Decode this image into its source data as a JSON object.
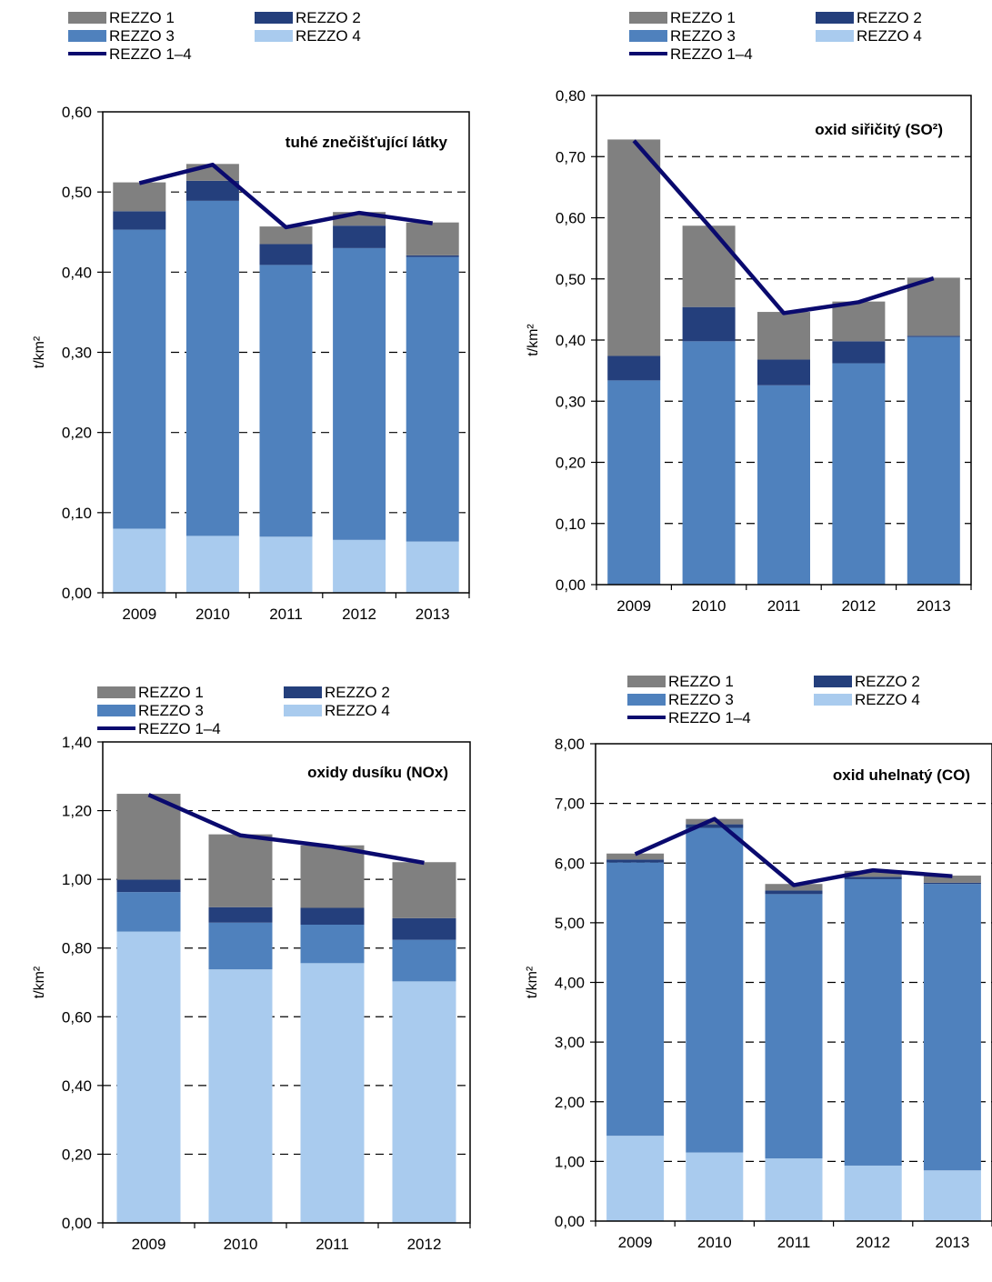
{
  "colors": {
    "REZZO 1": "#808080",
    "REZZO 2": "#243f7c",
    "REZZO 3": "#4f81bd",
    "REZZO 4": "#a9cbee",
    "REZZO 1–4": "#0a0a6e"
  },
  "chart_data": [
    {
      "type": "bar",
      "stacked": true,
      "title": "tuhé znečišťující látky",
      "ylabel": "t/km²",
      "ylim": [
        0,
        0.6
      ],
      "yticks": [
        "0,00",
        "0,10",
        "0,20",
        "0,30",
        "0,40",
        "0,50",
        "0,60"
      ],
      "categories": [
        "2009",
        "2010",
        "2011",
        "2012",
        "2013"
      ],
      "legend": [
        "REZZO 1",
        "REZZO 2",
        "REZZO 3",
        "REZZO 4",
        "REZZO 1–4"
      ],
      "legend_placement": "top",
      "grid": "dashed horizontal",
      "series": [
        {
          "name": "REZZO 4",
          "values": [
            0.08,
            0.071,
            0.07,
            0.066,
            0.064
          ]
        },
        {
          "name": "REZZO 3",
          "values": [
            0.373,
            0.418,
            0.339,
            0.364,
            0.355
          ]
        },
        {
          "name": "REZZO 2",
          "values": [
            0.023,
            0.025,
            0.026,
            0.028,
            0.002
          ]
        },
        {
          "name": "REZZO 1",
          "values": [
            0.036,
            0.021,
            0.022,
            0.017,
            0.041
          ]
        }
      ],
      "line": {
        "name": "REZZO 1–4",
        "values": [
          0.511,
          0.534,
          0.456,
          0.474,
          0.461
        ]
      }
    },
    {
      "type": "bar",
      "stacked": true,
      "title": "oxid siřičitý (SO²)",
      "ylabel": "t/km²",
      "ylim": [
        0,
        0.8
      ],
      "yticks": [
        "0,00",
        "0,10",
        "0,20",
        "0,30",
        "0,40",
        "0,50",
        "0,60",
        "0,70",
        "0,80"
      ],
      "categories": [
        "2009",
        "2010",
        "2011",
        "2012",
        "2013"
      ],
      "legend": [
        "REZZO 1",
        "REZZO 2",
        "REZZO 3",
        "REZZO 4",
        "REZZO 1–4"
      ],
      "legend_placement": "top",
      "grid": "dashed horizontal",
      "series": [
        {
          "name": "REZZO 4",
          "values": [
            0.0,
            0.0,
            0.0,
            0.0,
            0.0
          ]
        },
        {
          "name": "REZZO 3",
          "values": [
            0.334,
            0.398,
            0.326,
            0.362,
            0.405
          ]
        },
        {
          "name": "REZZO 2",
          "values": [
            0.04,
            0.056,
            0.042,
            0.036,
            0.002
          ]
        },
        {
          "name": "REZZO 1",
          "values": [
            0.354,
            0.133,
            0.078,
            0.065,
            0.095
          ]
        }
      ],
      "line": {
        "name": "REZZO 1–4",
        "values": [
          0.726,
          0.587,
          0.444,
          0.462,
          0.501
        ]
      }
    },
    {
      "type": "bar",
      "stacked": true,
      "title": "oxidy dusíku (NOx)",
      "ylabel": "t/km²",
      "ylim": [
        0,
        1.4
      ],
      "yticks": [
        "0,00",
        "0,20",
        "0,40",
        "0,60",
        "0,80",
        "1,00",
        "1,20",
        "1,40"
      ],
      "categories": [
        "2009",
        "2010",
        "2011",
        "2012"
      ],
      "legend": [
        "REZZO 1",
        "REZZO 2",
        "REZZO 3",
        "REZZO 4",
        "REZZO 1–4"
      ],
      "legend_placement": "top",
      "grid": "dashed horizontal",
      "series": [
        {
          "name": "REZZO 4",
          "values": [
            0.848,
            0.738,
            0.756,
            0.703
          ]
        },
        {
          "name": "REZZO 3",
          "values": [
            0.115,
            0.136,
            0.112,
            0.121
          ]
        },
        {
          "name": "REZZO 2",
          "values": [
            0.036,
            0.045,
            0.049,
            0.063
          ]
        },
        {
          "name": "REZZO 1",
          "values": [
            0.25,
            0.212,
            0.182,
            0.163
          ]
        }
      ],
      "line": {
        "name": "REZZO 1–4",
        "values": [
          1.246,
          1.128,
          1.095,
          1.048
        ]
      }
    },
    {
      "type": "bar",
      "stacked": true,
      "title": "oxid uhelnatý (CO)",
      "ylabel": "t/km²",
      "ylim": [
        0,
        8
      ],
      "yticks": [
        "0,00",
        "1,00",
        "2,00",
        "3,00",
        "4,00",
        "5,00",
        "6,00",
        "7,00",
        "8,00"
      ],
      "categories": [
        "2009",
        "2010",
        "2011",
        "2012",
        "2013"
      ],
      "legend": [
        "REZZO 1",
        "REZZO 2",
        "REZZO 3",
        "REZZO 4",
        "REZZO 1–4"
      ],
      "legend_placement": "top",
      "grid": "dashed horizontal",
      "series": [
        {
          "name": "REZZO 4",
          "values": [
            1.43,
            1.15,
            1.05,
            0.93,
            0.85
          ]
        },
        {
          "name": "REZZO 3",
          "values": [
            4.58,
            5.44,
            4.43,
            4.8,
            4.8
          ]
        },
        {
          "name": "REZZO 2",
          "values": [
            0.05,
            0.06,
            0.06,
            0.04,
            0.02
          ]
        },
        {
          "name": "REZZO 1",
          "values": [
            0.1,
            0.09,
            0.11,
            0.1,
            0.12
          ]
        }
      ],
      "line": {
        "name": "REZZO 1–4",
        "values": [
          6.15,
          6.74,
          5.63,
          5.88,
          5.78
        ]
      }
    }
  ]
}
